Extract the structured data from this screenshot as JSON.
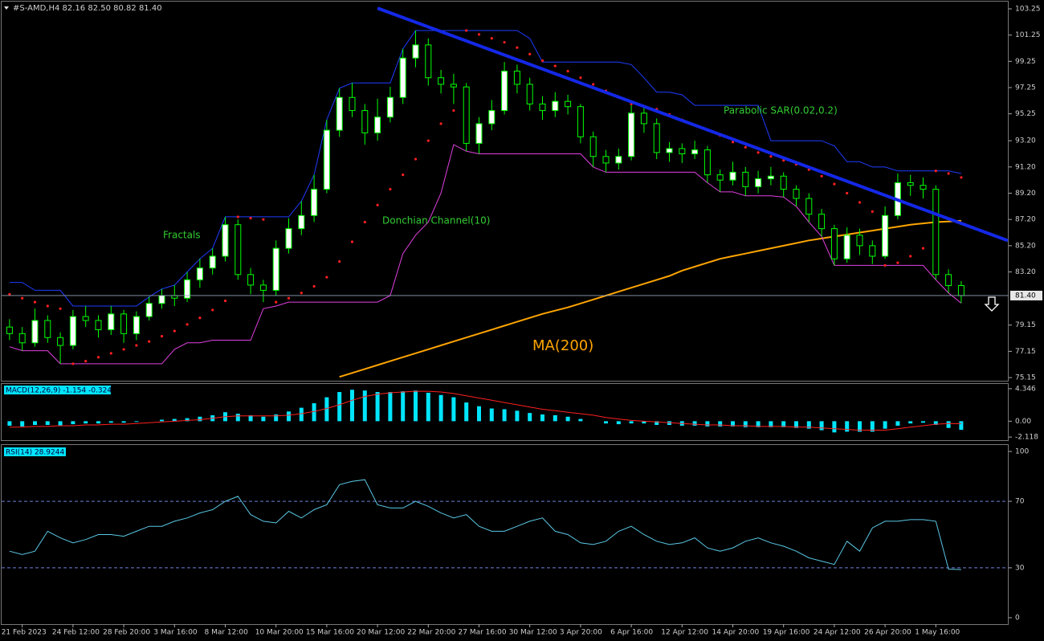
{
  "chart_data": [
    {
      "type": "candlestick",
      "title": "#S-AMD,H4  82.16 82.50 80.82 81.40",
      "categories": [
        null,
        "21 Feb 2023",
        null,
        null,
        null,
        "24 Feb 12:00",
        null,
        null,
        null,
        "28 Feb 20:00",
        null,
        null,
        null,
        "3 Mar 16:00",
        null,
        null,
        null,
        "8 Mar 12:00",
        null,
        null,
        null,
        "10 Mar 20:00",
        null,
        null,
        null,
        "15 Mar 16:00",
        null,
        null,
        null,
        "20 Mar 12:00",
        null,
        null,
        null,
        "22 Mar 20:00",
        null,
        null,
        null,
        "27 Mar 16:00",
        null,
        null,
        null,
        "30 Mar 12:00",
        null,
        null,
        null,
        "3 Apr 20:00",
        null,
        null,
        null,
        "6 Apr 16:00",
        null,
        null,
        null,
        "12 Apr 12:00",
        null,
        null,
        null,
        "14 Apr 20:00",
        null,
        null,
        null,
        "19 Apr 16:00",
        null,
        null,
        null,
        "24 Apr 12:00",
        null,
        null,
        null,
        "26 Apr 20:00",
        null,
        null,
        null,
        "1 May 16:00",
        null,
        null
      ],
      "open": [
        79.0,
        78.5,
        77.8,
        79.5,
        78.2,
        77.6,
        79.8,
        79.5,
        78.8,
        80.0,
        78.5,
        79.8,
        80.8,
        81.4,
        81.2,
        82.6,
        83.5,
        84.4,
        86.8,
        83.0,
        82.2,
        81.8,
        85.0,
        86.5,
        87.5,
        89.5,
        94.0,
        96.5,
        95.5,
        93.8,
        95.0,
        96.5,
        99.5,
        100.5,
        98.0,
        97.5,
        97.3,
        93.0,
        94.5,
        95.5,
        98.5,
        97.5,
        96.0,
        95.5,
        96.2,
        95.8,
        93.5,
        92.0,
        91.5,
        92.0,
        95.3,
        94.5,
        92.3,
        92.6,
        92.2,
        92.5,
        90.6,
        90.2,
        90.8,
        89.7,
        90.3,
        90.5,
        89.5,
        88.8,
        87.6,
        86.5,
        84.2,
        86.0,
        85.2,
        84.4,
        87.5,
        90.0,
        89.8,
        89.5,
        83.0,
        82.16
      ],
      "high": [
        79.6,
        79.0,
        80.4,
        79.9,
        78.6,
        80.3,
        80.6,
        79.9,
        80.6,
        80.3,
        80.2,
        81.3,
        81.9,
        82.2,
        83.2,
        84.2,
        85.0,
        87.4,
        87.2,
        83.5,
        82.6,
        85.6,
        87.3,
        88.6,
        90.6,
        94.8,
        97.2,
        97.6,
        96.0,
        96.4,
        97.3,
        100.2,
        101.6,
        101.0,
        98.6,
        98.3,
        97.6,
        95.0,
        96.3,
        99.2,
        99.0,
        98.0,
        96.6,
        96.9,
        96.7,
        96.0,
        93.9,
        92.5,
        92.6,
        95.9,
        95.8,
        94.9,
        93.1,
        93.0,
        93.2,
        92.8,
        91.0,
        91.6,
        91.2,
        90.9,
        91.2,
        90.8,
        89.8,
        89.2,
        88.0,
        86.8,
        86.6,
        86.5,
        85.6,
        88.2,
        90.7,
        90.6,
        90.4,
        89.8,
        83.4,
        82.5
      ],
      "low": [
        78.0,
        77.2,
        77.5,
        77.8,
        76.2,
        77.3,
        79.0,
        78.2,
        78.4,
        77.8,
        78.0,
        79.5,
        80.4,
        80.6,
        80.9,
        82.0,
        83.0,
        84.0,
        82.6,
        81.5,
        80.9,
        81.4,
        84.6,
        86.0,
        87.0,
        89.2,
        93.5,
        95.0,
        92.9,
        93.2,
        94.6,
        96.0,
        98.8,
        97.4,
        96.8,
        96.0,
        92.4,
        92.2,
        94.0,
        95.2,
        96.8,
        95.5,
        94.8,
        95.0,
        95.2,
        93.0,
        91.2,
        90.8,
        91.0,
        91.7,
        93.8,
        91.8,
        91.6,
        91.5,
        91.8,
        90.0,
        89.3,
        89.8,
        89.0,
        89.2,
        89.8,
        88.9,
        88.2,
        87.0,
        85.9,
        83.7,
        83.9,
        84.5,
        83.8,
        84.2,
        87.2,
        89.0,
        88.8,
        82.6,
        81.6,
        80.82
      ],
      "close": [
        78.5,
        77.8,
        79.5,
        78.2,
        77.6,
        79.8,
        79.5,
        78.8,
        80.0,
        78.5,
        79.8,
        80.8,
        81.4,
        81.2,
        82.6,
        83.5,
        84.4,
        86.8,
        83.0,
        82.2,
        81.8,
        85.0,
        86.5,
        87.5,
        89.5,
        94.0,
        96.5,
        95.5,
        93.8,
        95.0,
        96.5,
        99.5,
        100.5,
        98.0,
        97.5,
        97.3,
        93.0,
        94.5,
        95.5,
        98.5,
        97.5,
        96.0,
        95.5,
        96.2,
        95.8,
        93.5,
        92.0,
        91.5,
        92.0,
        95.3,
        94.5,
        92.3,
        92.6,
        92.2,
        92.5,
        90.6,
        90.2,
        90.8,
        89.7,
        90.3,
        90.5,
        89.5,
        88.8,
        87.6,
        86.5,
        84.2,
        86.0,
        85.2,
        84.4,
        87.5,
        90.0,
        89.8,
        89.5,
        83.0,
        82.16,
        81.4
      ],
      "bull_color": "#ffffff",
      "bear_color": "#000000",
      "wick_color": "#00ff00",
      "ma": {
        "color": "#ffa500",
        "values": [
          null,
          null,
          null,
          null,
          null,
          null,
          null,
          null,
          null,
          null,
          null,
          null,
          null,
          null,
          null,
          null,
          null,
          null,
          null,
          null,
          null,
          null,
          null,
          null,
          null,
          null,
          75.2,
          75.5,
          75.8,
          76.1,
          76.4,
          76.7,
          77.0,
          77.3,
          77.6,
          77.9,
          78.2,
          78.5,
          78.8,
          79.1,
          79.4,
          79.7,
          80.0,
          80.25,
          80.5,
          80.8,
          81.1,
          81.4,
          81.7,
          82.0,
          82.3,
          82.6,
          82.9,
          83.3,
          83.6,
          83.9,
          84.2,
          84.4,
          84.6,
          84.8,
          85.0,
          85.2,
          85.4,
          85.6,
          85.75,
          85.9,
          86.05,
          86.2,
          86.35,
          86.5,
          86.65,
          86.8,
          86.9,
          87.0,
          87.05,
          87.1
        ]
      },
      "donchian_upper": {
        "color": "#1e3cff",
        "values": [
          82.4,
          82.4,
          81.8,
          81.8,
          81.8,
          80.6,
          80.6,
          80.6,
          80.6,
          80.6,
          80.6,
          81.3,
          81.9,
          82.2,
          83.2,
          84.2,
          85.0,
          87.4,
          87.4,
          87.4,
          87.4,
          87.4,
          87.4,
          88.6,
          90.6,
          94.8,
          97.2,
          97.6,
          97.6,
          97.6,
          97.6,
          100.2,
          101.6,
          101.6,
          101.6,
          101.6,
          101.6,
          101.6,
          101.6,
          101.6,
          101.6,
          101.0,
          99.2,
          99.2,
          99.2,
          99.2,
          99.2,
          99.2,
          99.2,
          99.0,
          98.0,
          96.9,
          96.9,
          96.7,
          95.9,
          95.9,
          95.9,
          95.9,
          95.9,
          95.9,
          93.2,
          93.2,
          93.2,
          93.2,
          93.2,
          92.8,
          91.6,
          91.6,
          91.2,
          91.2,
          90.9,
          90.9,
          90.9,
          90.9,
          90.9,
          90.7
        ]
      },
      "donchian_lower": {
        "color": "#e040e0",
        "values": [
          77.5,
          77.2,
          77.2,
          77.2,
          76.2,
          76.2,
          76.2,
          76.2,
          76.2,
          76.2,
          76.2,
          76.2,
          76.2,
          77.3,
          77.8,
          77.8,
          78.0,
          78.0,
          78.0,
          78.0,
          80.4,
          80.6,
          80.9,
          80.9,
          80.9,
          80.9,
          80.9,
          80.9,
          80.9,
          80.9,
          81.4,
          84.6,
          86.0,
          87.0,
          89.2,
          92.9,
          92.4,
          92.2,
          92.2,
          92.2,
          92.2,
          92.2,
          92.2,
          92.2,
          92.2,
          92.2,
          91.2,
          90.8,
          90.8,
          90.8,
          90.8,
          90.8,
          90.8,
          90.8,
          90.8,
          90.0,
          89.3,
          89.3,
          89.0,
          89.0,
          89.0,
          88.9,
          88.2,
          87.0,
          85.9,
          83.7,
          83.7,
          83.7,
          83.7,
          83.7,
          83.7,
          83.7,
          83.7,
          82.6,
          81.6,
          80.82
        ]
      },
      "sar": {
        "color": "#ff2020",
        "values": [
          81.5,
          81.2,
          80.9,
          80.6,
          80.4,
          76.2,
          76.4,
          76.7,
          77.0,
          77.3,
          77.6,
          77.9,
          78.3,
          78.7,
          79.2,
          79.7,
          80.3,
          81.0,
          87.4,
          87.3,
          87.2,
          80.9,
          81.2,
          81.6,
          82.1,
          82.8,
          84.0,
          85.5,
          87.0,
          88.3,
          89.5,
          90.6,
          91.8,
          93.2,
          94.5,
          95.5,
          101.6,
          101.3,
          101.0,
          100.7,
          100.3,
          99.8,
          99.3,
          98.9,
          98.5,
          98.0,
          97.5,
          97.0,
          96.5,
          96.0,
          95.8,
          95.6,
          95.2,
          94.8,
          94.4,
          94.0,
          93.6,
          93.1,
          92.7,
          92.3,
          92.0,
          91.7,
          91.4,
          91.0,
          90.5,
          89.9,
          89.2,
          88.5,
          87.8,
          83.7,
          83.9,
          84.4,
          85.0,
          90.9,
          90.7,
          90.4
        ]
      },
      "trendline": {
        "color": "#1428e6",
        "values": [
          null,
          null,
          null,
          null,
          null,
          null,
          null,
          null,
          null,
          null,
          null,
          null,
          null,
          null,
          null,
          null,
          null,
          null,
          null,
          null,
          null,
          null,
          null,
          null,
          null,
          null,
          null,
          null,
          null,
          103.3,
          null,
          null,
          null,
          null,
          null,
          null,
          null,
          null,
          null,
          null,
          null,
          null,
          null,
          null,
          null,
          null,
          null,
          null,
          null,
          null,
          null,
          null,
          null,
          null,
          null,
          null,
          null,
          null,
          null,
          null,
          null,
          null,
          null,
          null,
          null,
          null,
          null,
          null,
          null,
          null,
          null,
          null,
          null,
          null,
          null,
          86.9
        ]
      },
      "annotations": [
        {
          "text": "Fractals",
          "color": "#32cd32"
        },
        {
          "text": "Donchian Channel(10)",
          "color": "#32cd32"
        },
        {
          "text": "Parabolic SAR(0.02,0.2)",
          "color": "#32cd32"
        },
        {
          "text": "MA(200)",
          "color": "#ffa500"
        }
      ],
      "ylim": [
        74.97,
        103.74
      ],
      "yticks": [
        103.25,
        101.25,
        99.25,
        97.25,
        95.25,
        {
          "value": 93.2,
          "label": "93.20"
        },
        {
          "value": 91.2,
          "label": "91.20"
        },
        {
          "value": 89.2,
          "label": "89.20"
        },
        {
          "value": 87.2,
          "label": "87.20"
        },
        {
          "value": 85.2,
          "label": "85.20"
        },
        {
          "value": 83.2,
          "label": "83.20"
        },
        79.15,
        77.15,
        75.15
      ],
      "last_price": {
        "value": 81.4,
        "label": "81.40"
      }
    },
    {
      "type": "macd",
      "title": "MACD(12,26,9) -1.154 -0.324",
      "values": [
        -0.6,
        -0.7,
        -0.5,
        -0.5,
        -0.6,
        -0.4,
        -0.3,
        -0.3,
        -0.2,
        -0.2,
        -0.1,
        0.0,
        0.2,
        0.3,
        0.4,
        0.6,
        0.8,
        1.2,
        1.0,
        0.8,
        0.6,
        0.9,
        1.3,
        1.8,
        2.4,
        3.2,
        3.9,
        4.2,
        4.1,
        3.9,
        3.9,
        4.0,
        4.1,
        3.8,
        3.5,
        3.2,
        2.5,
        2.0,
        1.7,
        1.6,
        1.4,
        1.1,
        0.9,
        0.8,
        0.6,
        0.3,
        0.0,
        -0.3,
        -0.4,
        -0.3,
        -0.3,
        -0.5,
        -0.5,
        -0.6,
        -0.6,
        -0.7,
        -0.7,
        -0.7,
        -0.8,
        -0.8,
        -0.8,
        -0.8,
        -0.9,
        -1.0,
        -1.2,
        -1.5,
        -1.4,
        -1.4,
        -1.4,
        -1.0,
        -0.6,
        -0.3,
        -0.2,
        -0.5,
        -0.9,
        -1.154
      ],
      "color": "#00e5ff",
      "signal": {
        "color": "#ff2020",
        "values": [
          -0.8,
          -0.8,
          -0.7,
          -0.7,
          -0.6,
          -0.6,
          -0.5,
          -0.5,
          -0.4,
          -0.4,
          -0.3,
          -0.2,
          -0.1,
          0.0,
          0.1,
          0.2,
          0.4,
          0.6,
          0.7,
          0.7,
          0.7,
          0.7,
          0.8,
          1.0,
          1.3,
          1.7,
          2.2,
          2.8,
          3.3,
          3.6,
          3.8,
          3.9,
          4.0,
          4.0,
          3.9,
          3.7,
          3.4,
          3.1,
          2.8,
          2.5,
          2.2,
          1.9,
          1.6,
          1.4,
          1.2,
          1.0,
          0.8,
          0.5,
          0.3,
          0.1,
          0.0,
          -0.1,
          -0.2,
          -0.3,
          -0.4,
          -0.5,
          -0.5,
          -0.6,
          -0.6,
          -0.7,
          -0.7,
          -0.7,
          -0.8,
          -0.8,
          -0.9,
          -1.0,
          -1.1,
          -1.2,
          -1.2,
          -1.2,
          -1.0,
          -0.8,
          -0.6,
          -0.4,
          -0.3,
          -0.324
        ]
      },
      "ylim": [
        -2.43,
        4.87
      ],
      "yticks": [
        4.346,
        {
          "value": 0,
          "label": "0.00"
        },
        -2.118
      ]
    },
    {
      "type": "rsi",
      "title": "RSI(14) 28.9244",
      "values": [
        40,
        38,
        40,
        52,
        48,
        45,
        47,
        50,
        50,
        49,
        52,
        55,
        55,
        58,
        60,
        63,
        65,
        70,
        73,
        62,
        58,
        57,
        64,
        60,
        65,
        68,
        80,
        82,
        83,
        68,
        66,
        66,
        70,
        67,
        63,
        60,
        62,
        55,
        52,
        52,
        55,
        58,
        60,
        52,
        50,
        45,
        44,
        46,
        52,
        55,
        50,
        46,
        44,
        45,
        48,
        42,
        40,
        42,
        46,
        48,
        45,
        43,
        40,
        36,
        34,
        32,
        46,
        40,
        54,
        58,
        58,
        59,
        59,
        58,
        29.2,
        28.9244
      ],
      "color": "#5ac8e6",
      "levels": [
        70,
        30
      ],
      "level_color": "#6f7fd8",
      "ylim": [
        -3.4,
        103.4
      ],
      "yticks": [
        100,
        70,
        30,
        0
      ]
    }
  ]
}
